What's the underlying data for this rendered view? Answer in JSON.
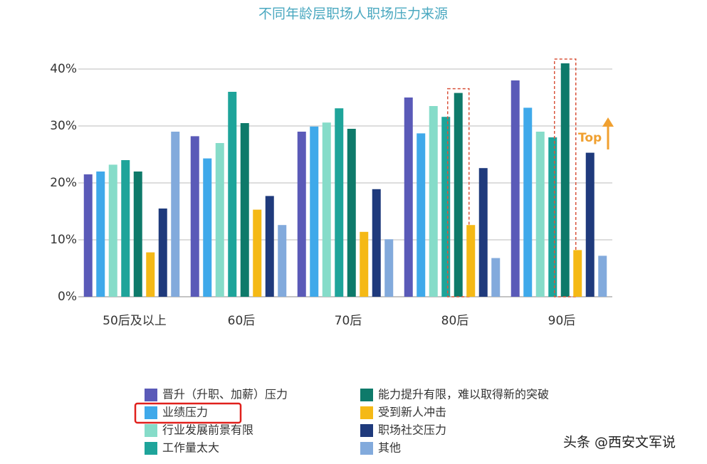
{
  "chart_data": {
    "type": "bar",
    "title": "不同年龄层职场人职场压力来源",
    "categories": [
      "50后及以上",
      "60后",
      "70后",
      "80后",
      "90后"
    ],
    "series": [
      {
        "name": "晋升（升职、加薪）压力",
        "color": "#5a5ab8",
        "values": [
          21.5,
          28.2,
          29,
          35,
          38
        ]
      },
      {
        "name": "业绩压力",
        "color": "#3fa9ea",
        "values": [
          22,
          24.3,
          29.9,
          28.7,
          33.2
        ]
      },
      {
        "name": "行业发展前景有限",
        "color": "#86dcc9",
        "values": [
          23.2,
          27,
          30.6,
          33.5,
          29
        ]
      },
      {
        "name": "工作量太大",
        "color": "#1ea49a",
        "values": [
          24,
          36,
          33.1,
          31.6,
          28
        ]
      },
      {
        "name": "能力提升有限，难以取得新的突破",
        "color": "#0e7a6a",
        "values": [
          22,
          30.5,
          29.5,
          35.8,
          41
        ]
      },
      {
        "name": "受到新人冲击",
        "color": "#f5b916",
        "values": [
          7.8,
          15.3,
          11.4,
          12.6,
          8.2
        ]
      },
      {
        "name": "职场社交压力",
        "color": "#1f3a7c",
        "values": [
          15.5,
          17.7,
          18.9,
          22.6,
          25.3
        ]
      },
      {
        "name": "其他",
        "color": "#82aadc",
        "values": [
          29,
          12.6,
          10.1,
          6.8,
          7.2
        ]
      }
    ],
    "ylim": [
      0,
      40
    ],
    "yticks": [
      {
        "value": 0,
        "label": "0%"
      },
      {
        "value": 10,
        "label": "10%"
      },
      {
        "value": 20,
        "label": "20%"
      },
      {
        "value": 30,
        "label": "30%"
      },
      {
        "value": 40,
        "label": "40%"
      }
    ],
    "grid": true,
    "annotation": "Top",
    "watermark": "头条 @西安文军说"
  }
}
